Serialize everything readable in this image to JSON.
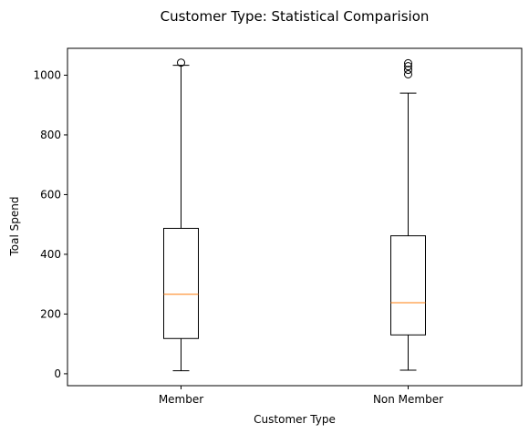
{
  "chart_data": {
    "type": "box",
    "title": "Customer Type: Statistical Comparision",
    "xlabel": "Customer Type",
    "ylabel": "Toal Spend",
    "ylim": [
      -40,
      1090
    ],
    "yticks": [
      0,
      200,
      400,
      600,
      800,
      1000
    ],
    "grid": false,
    "categories": [
      "Member",
      "Non Member"
    ],
    "boxes": [
      {
        "category": "Member",
        "whisker_low": 10,
        "q1": 118,
        "median": 266,
        "q3": 487,
        "whisker_high": 1033,
        "outliers": [
          1042
        ]
      },
      {
        "category": "Non Member",
        "whisker_low": 12,
        "q1": 130,
        "median": 238,
        "q3": 462,
        "whisker_high": 940,
        "outliers": [
          1003,
          1018,
          1030,
          1040
        ]
      }
    ],
    "colors": {
      "box": "#000000",
      "median": "#ff7f0e",
      "background": "#ffffff"
    }
  }
}
